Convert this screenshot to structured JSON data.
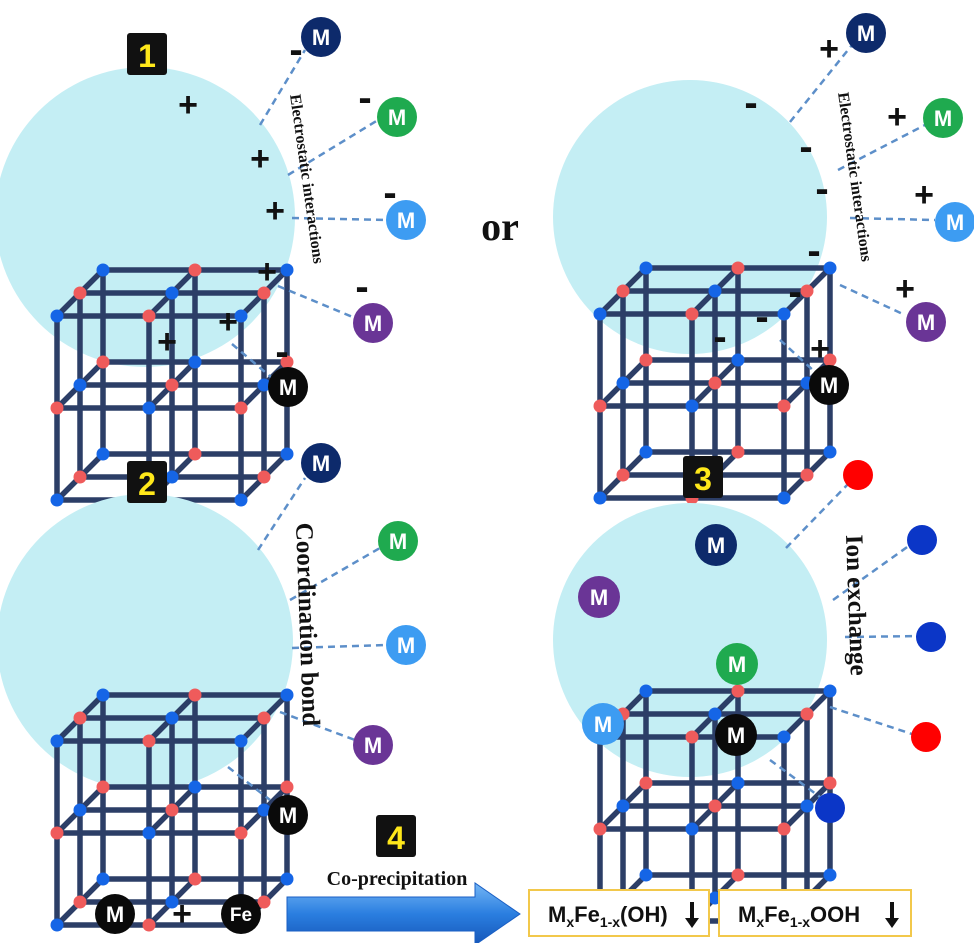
{
  "panels": [
    {
      "number": "1",
      "label": "Electrostatic interactions",
      "sign_near_cube": "+",
      "sign_near_ion": "-"
    },
    {
      "number": "",
      "label": "Electrostatic interactions",
      "sign_near_cube": "-",
      "sign_near_ion": "+"
    },
    {
      "number": "2",
      "label": "Coordination bond"
    },
    {
      "number": "3",
      "label": "Ion exchange"
    }
  ],
  "connector": "or",
  "step4": {
    "number": "4",
    "reactant_metal": "M",
    "plus": "+",
    "reactant_iron": "Fe",
    "arrow_label": "Co-precipitation",
    "product1": "MxFe1-x(OH)",
    "product2": "MxFe1-xOOH"
  },
  "metal_symbol": "M",
  "colors": {
    "badge_bg": "#111111",
    "badge_text": "#ffe81a",
    "sphere": "#c4eef4",
    "framework_bar": "#2c3e67",
    "node_blue": "#1565e6",
    "node_red": "#ef5b5b",
    "ion_navy": "#0d2a6b",
    "ion_green": "#1faa4f",
    "ion_lightblue": "#3d9cf2",
    "ion_purple": "#6a3596",
    "ion_black": "#0a0a0a",
    "exchange_red": "#ff0000",
    "exchange_blue": "#0b36c7",
    "dash_line": "#5d8fc9",
    "arrow": "#2a7ee0",
    "product_box_border": "#f2c84b"
  }
}
